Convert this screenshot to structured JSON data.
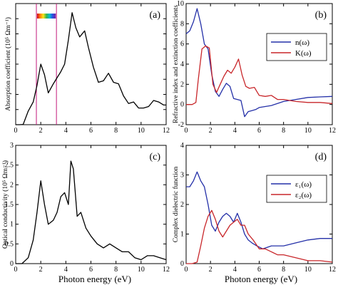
{
  "figure": {
    "x_label_text": "Photon energy (eV)"
  },
  "colors": {
    "frame": "#000000",
    "blue": "#2430a8",
    "red": "#c8262a",
    "marker": "#c2187a"
  },
  "chart_data": [
    {
      "id": "a",
      "type": "line",
      "panel_label": "(a)",
      "ylabel": "Absorption coefficient (10⁵ Ωm⁻¹)",
      "ylim": [
        0,
        8
      ],
      "yticks": [
        "0",
        "1",
        "2",
        "3",
        "4",
        "5",
        "6",
        "7",
        "8"
      ],
      "show_ytick_labels": false,
      "xlim": [
        0,
        12
      ],
      "xticks": [
        "0",
        "2",
        "4",
        "6",
        "8",
        "10",
        "12"
      ],
      "show_xtick_labels": true,
      "vlines": [
        1.65,
        3.25
      ],
      "spectrum_bar": [
        1.7,
        3.2
      ],
      "legend": null,
      "series": [
        {
          "name": "",
          "color": "#000000",
          "x": [
            0,
            0.3,
            0.6,
            1.0,
            1.4,
            1.7,
            2.0,
            2.3,
            2.6,
            3.0,
            3.3,
            3.6,
            3.9,
            4.2,
            4.5,
            4.8,
            5.1,
            5.5,
            5.8,
            6.2,
            6.6,
            7.0,
            7.4,
            7.8,
            8.2,
            8.6,
            9.0,
            9.4,
            9.8,
            10.2,
            10.6,
            11.0,
            11.4,
            11.8,
            12.0
          ],
          "y": [
            0,
            0,
            0.02,
            0.9,
            1.5,
            2.6,
            4.0,
            3.3,
            2.1,
            2.7,
            3.1,
            3.5,
            4.0,
            5.6,
            7.4,
            6.4,
            5.8,
            6.2,
            5.1,
            3.8,
            2.8,
            2.9,
            3.4,
            2.8,
            2.7,
            1.9,
            1.4,
            1.5,
            1.1,
            1.1,
            1.2,
            1.6,
            1.5,
            1.3,
            1.3
          ]
        }
      ]
    },
    {
      "id": "b",
      "type": "line",
      "panel_label": "(b)",
      "ylabel": "Refractive index and extinction coefficients",
      "ylim": [
        -2,
        10
      ],
      "yticks": [
        "-2",
        "0",
        "2",
        "4",
        "6",
        "8",
        "10"
      ],
      "show_ytick_labels": true,
      "xlim": [
        0,
        12
      ],
      "xticks": [
        "0",
        "2",
        "4",
        "6",
        "8",
        "10",
        "12"
      ],
      "show_xtick_labels": true,
      "vlines": [],
      "spectrum_bar": null,
      "legend": {
        "position": "right",
        "entries": [
          "n(ω)",
          "K(ω)"
        ]
      },
      "series": [
        {
          "name": "n(ω)",
          "color": "#2430a8",
          "x": [
            0,
            0.3,
            0.6,
            0.9,
            1.2,
            1.5,
            1.8,
            2.1,
            2.4,
            2.7,
            3.0,
            3.3,
            3.6,
            3.9,
            4.2,
            4.5,
            4.8,
            5.1,
            5.4,
            5.7,
            6.0,
            6.5,
            7.0,
            7.5,
            8.0,
            9.0,
            10.0,
            11.0,
            12.0
          ],
          "y": [
            7,
            7.3,
            8.2,
            9.5,
            8,
            6,
            5.5,
            3,
            1.3,
            0.8,
            1.5,
            2.1,
            1.8,
            0.6,
            0.5,
            0.4,
            -1.2,
            -0.7,
            -0.6,
            -0.5,
            -0.3,
            -0.2,
            -0.1,
            0.1,
            0.3,
            0.5,
            0.7,
            0.75,
            0.8
          ]
        },
        {
          "name": "K(ω)",
          "color": "#c8262a",
          "x": [
            0,
            0.5,
            0.8,
            1.0,
            1.3,
            1.6,
            1.9,
            2.2,
            2.5,
            2.8,
            3.1,
            3.4,
            3.7,
            4.0,
            4.3,
            4.6,
            4.9,
            5.2,
            5.6,
            6.0,
            6.5,
            7.0,
            7.5,
            8.0,
            9.0,
            10.0,
            11.0,
            12.0
          ],
          "y": [
            0,
            0,
            0.2,
            2.5,
            5.5,
            5.8,
            5.6,
            2.0,
            1.2,
            2.0,
            2.8,
            3.4,
            3.1,
            3.7,
            4.5,
            2.9,
            1.8,
            1.6,
            1.7,
            0.9,
            0.8,
            0.9,
            0.5,
            0.5,
            0.3,
            0.2,
            0.2,
            0.1
          ]
        }
      ]
    },
    {
      "id": "c",
      "type": "line",
      "panel_label": "(c)",
      "ylabel": "Optical conductivity (10⁵ Ωm⁻¹)",
      "ylim": [
        0,
        3
      ],
      "yticks": [
        "0",
        "0.5",
        "1",
        "1.5",
        "2",
        "2.5",
        "3"
      ],
      "show_ytick_labels": true,
      "xlim": [
        0,
        12
      ],
      "xticks": [
        "0",
        "2",
        "4",
        "6",
        "8",
        "10",
        "12"
      ],
      "show_xtick_labels": true,
      "vlines": [],
      "spectrum_bar": null,
      "legend": null,
      "series": [
        {
          "name": "",
          "color": "#000000",
          "x": [
            0,
            0.5,
            1.0,
            1.4,
            1.7,
            2.0,
            2.3,
            2.6,
            3.0,
            3.3,
            3.6,
            3.9,
            4.2,
            4.4,
            4.6,
            4.9,
            5.2,
            5.6,
            6.0,
            6.5,
            7.0,
            7.5,
            8.0,
            8.5,
            9.0,
            9.5,
            10.0,
            10.5,
            11.0,
            11.5,
            12.0
          ],
          "y": [
            0,
            0,
            0.15,
            0.6,
            1.3,
            2.1,
            1.5,
            1.0,
            1.1,
            1.3,
            1.7,
            1.8,
            1.5,
            2.6,
            2.4,
            1.2,
            1.3,
            0.9,
            0.7,
            0.5,
            0.4,
            0.5,
            0.4,
            0.3,
            0.3,
            0.15,
            0.1,
            0.2,
            0.2,
            0.15,
            0.1
          ]
        }
      ]
    },
    {
      "id": "d",
      "type": "line",
      "panel_label": "(d)",
      "ylabel": "Complex dielectric function",
      "ylim": [
        0,
        4
      ],
      "yticks": [
        "0",
        "1",
        "2",
        "3",
        "4"
      ],
      "show_ytick_labels": true,
      "xlim": [
        0,
        12
      ],
      "xticks": [
        "0",
        "2",
        "4",
        "6",
        "8",
        "10",
        "12"
      ],
      "show_xtick_labels": true,
      "vlines": [],
      "spectrum_bar": null,
      "legend": {
        "position": "right",
        "entries": [
          "ε₁(ω)",
          "ε₂(ω)"
        ]
      },
      "series": [
        {
          "name": "ε₁(ω)",
          "color": "#2430a8",
          "x": [
            0,
            0.3,
            0.6,
            0.9,
            1.2,
            1.5,
            1.8,
            2.1,
            2.4,
            2.7,
            3.0,
            3.3,
            3.6,
            3.9,
            4.2,
            4.5,
            4.8,
            5.1,
            5.4,
            5.8,
            6.3,
            7.0,
            8.0,
            9.0,
            10.0,
            11.0,
            12.0
          ],
          "y": [
            2.6,
            2.6,
            2.8,
            3.1,
            2.8,
            2.6,
            2.0,
            1.3,
            1.1,
            1.4,
            1.6,
            1.7,
            1.6,
            1.4,
            1.7,
            1.4,
            1.0,
            0.8,
            0.7,
            0.6,
            0.5,
            0.6,
            0.6,
            0.7,
            0.8,
            0.85,
            0.85
          ]
        },
        {
          "name": "ε₂(ω)",
          "color": "#c8262a",
          "x": [
            0,
            0.5,
            0.9,
            1.2,
            1.5,
            1.8,
            2.1,
            2.4,
            2.7,
            3.0,
            3.3,
            3.6,
            3.9,
            4.2,
            4.5,
            4.8,
            5.1,
            5.5,
            6.0,
            6.5,
            7.0,
            7.5,
            8.0,
            9.0,
            10.0,
            11.0,
            12.0
          ],
          "y": [
            0,
            0,
            0.05,
            0.6,
            1.2,
            1.6,
            1.8,
            1.5,
            1.1,
            0.9,
            1.1,
            1.3,
            1.4,
            1.5,
            1.3,
            1.3,
            1.0,
            0.8,
            0.5,
            0.5,
            0.4,
            0.3,
            0.3,
            0.2,
            0.1,
            0.1,
            0.05
          ]
        }
      ]
    }
  ]
}
